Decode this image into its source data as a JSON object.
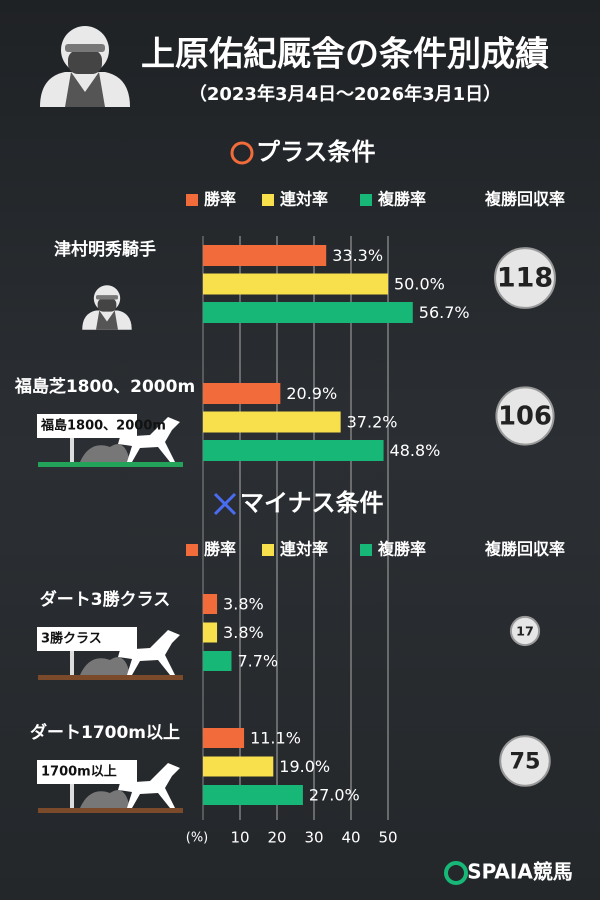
{
  "header": {
    "title": "上原佑紀厩舎の条件別成績",
    "subtitle": "（2023年3月4日〜2026年3月1日）"
  },
  "sections": [
    {
      "heading": "プラス条件",
      "series": [
        {
          "name": "勝率",
          "color": "#f26b3a"
        },
        {
          "name": "連対率",
          "color": "#f7e04b"
        },
        {
          "name": "複勝率",
          "color": "#17b877"
        }
      ],
      "return_label": "複勝回収率",
      "groups": [
        {
          "label": "津村明秀騎手",
          "values": [
            33.3,
            50.0,
            56.7
          ],
          "value_labels": [
            "33.3%",
            "50.0%",
            "56.7%"
          ],
          "return_value": 118
        },
        {
          "label": "福島芝1800、2000m",
          "sign": "福島1800、2000m",
          "values": [
            20.9,
            37.2,
            48.8
          ],
          "value_labels": [
            "20.9%",
            "37.2%",
            "48.8%"
          ],
          "return_value": 106
        }
      ]
    },
    {
      "heading": "マイナス条件",
      "series": [
        {
          "name": "勝率",
          "color": "#f26b3a"
        },
        {
          "name": "連対率",
          "color": "#f7e04b"
        },
        {
          "name": "複勝率",
          "color": "#17b877"
        }
      ],
      "return_label": "複勝回収率",
      "groups": [
        {
          "label": "ダート3勝クラス",
          "sign": "3勝クラス",
          "values": [
            3.8,
            3.8,
            7.7
          ],
          "value_labels": [
            "3.8%",
            "3.8%",
            "7.7%"
          ],
          "return_value": 17
        },
        {
          "label": "ダート1700m以上",
          "sign": "1700m以上",
          "values": [
            11.1,
            19.0,
            27.0
          ],
          "value_labels": [
            "11.1%",
            "19.0%",
            "27.0%"
          ],
          "return_value": 75
        }
      ]
    }
  ],
  "axis": {
    "unit_label": "(%)",
    "xlim": [
      0,
      50
    ],
    "ticks": [
      10,
      20,
      30,
      40,
      50
    ]
  },
  "logo": "SPAIA競馬"
}
